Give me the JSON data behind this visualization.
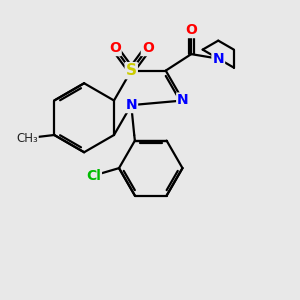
{
  "bg_color": "#e8e8e8",
  "atom_colors": {
    "S": "#cccc00",
    "N": "#0000ff",
    "O": "#ff0000",
    "Cl": "#00bb00",
    "C": "#000000"
  },
  "bond_color": "#000000",
  "bond_width": 1.6,
  "font_size_atom": 10,
  "title": ""
}
